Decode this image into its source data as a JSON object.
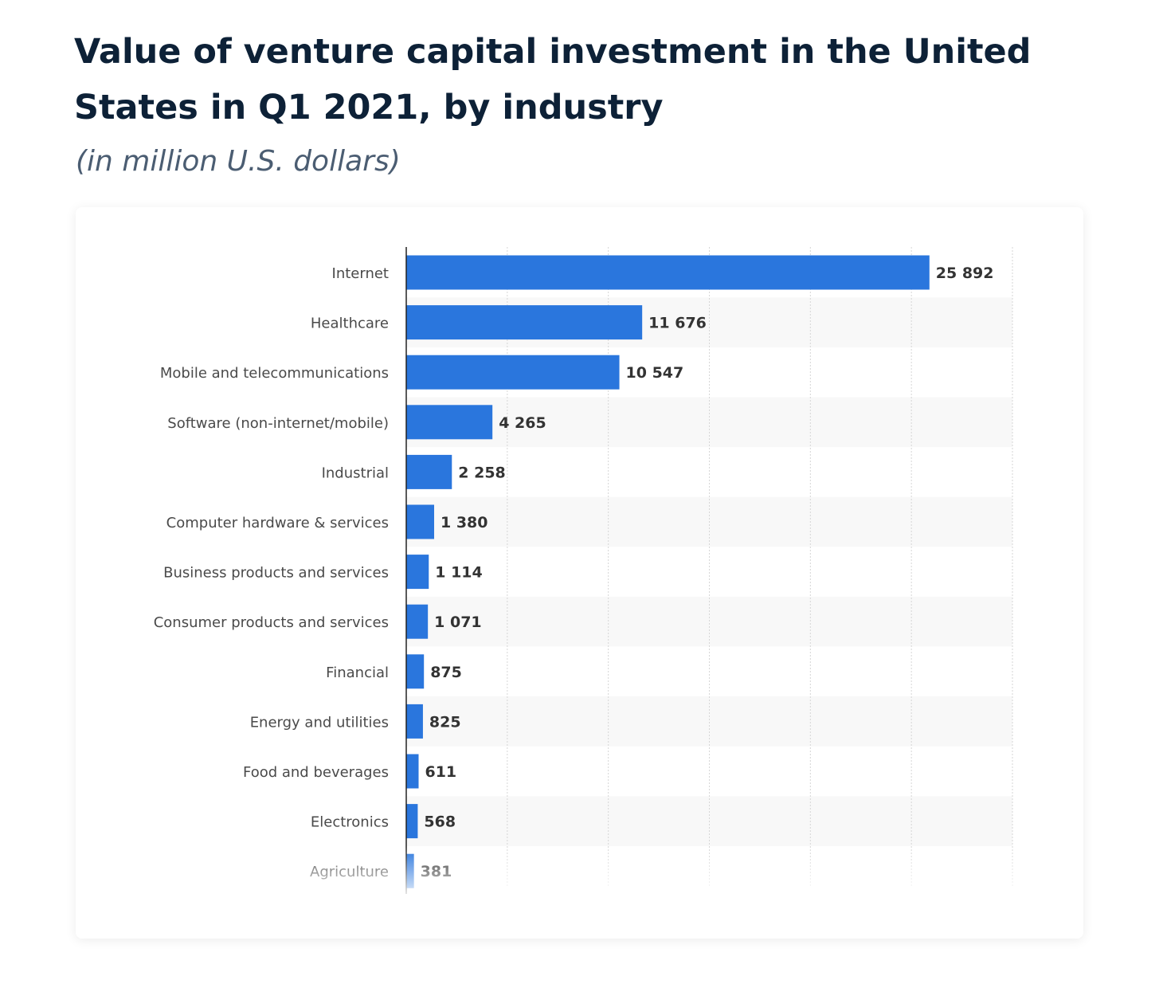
{
  "title": "Value of venture capital investment in the United States in Q1 2021, by industry",
  "subtitle": "(in million U.S. dollars)",
  "chart_data": {
    "type": "bar",
    "orientation": "horizontal",
    "title": "Value of venture capital investment in the United States in Q1 2021, by industry",
    "subtitle": "(in million U.S. dollars)",
    "categories": [
      "Internet",
      "Healthcare",
      "Mobile and telecommunications",
      "Software (non-internet/mobile)",
      "Industrial",
      "Computer hardware & services",
      "Business products and services",
      "Consumer products and services",
      "Financial",
      "Energy and utilities",
      "Food and beverages",
      "Electronics",
      "Agriculture"
    ],
    "values": [
      25892,
      11676,
      10547,
      4265,
      2258,
      1380,
      1114,
      1071,
      875,
      825,
      611,
      568,
      381
    ],
    "value_labels": [
      "25 892",
      "11 676",
      "10 547",
      "4 265",
      "2 258",
      "1 380",
      "1 114",
      "1 071",
      "875",
      "825",
      "611",
      "568",
      "381"
    ],
    "xlim": [
      0,
      30000
    ],
    "grid": true,
    "grid_step": 5000,
    "bar_color": "#2a76dd",
    "stripe_color": "#f8f8f8"
  }
}
